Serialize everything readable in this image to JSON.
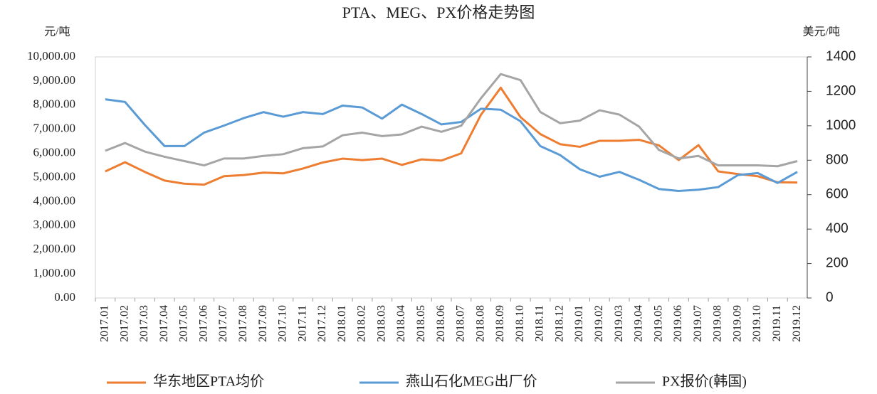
{
  "chart_data": {
    "type": "line",
    "title": "PTA、MEG、PX价格走势图",
    "y_label": "元/吨",
    "y2_label": "美元/吨",
    "categories": [
      "2017.01",
      "2017.02",
      "2017.03",
      "2017.04",
      "2017.05",
      "2017.06",
      "2017.07",
      "2017.08",
      "2017.09",
      "2017.10",
      "2017.11",
      "2017.12",
      "2018.01",
      "2018.02",
      "2018.03",
      "2018.04",
      "2018.05",
      "2018.06",
      "2018.07",
      "2018.08",
      "2018.09",
      "2018.10",
      "2018.11",
      "2018.12",
      "2019.01",
      "2019.02",
      "2019.03",
      "2019.04",
      "2019.05",
      "2019.06",
      "2019.07",
      "2019.08",
      "2019.09",
      "2019.10",
      "2019.11",
      "2019.12"
    ],
    "series": [
      {
        "name": "华东地区PTA均价",
        "color": "#ed7d31",
        "axis": "y",
        "values": [
          5250,
          5630,
          5230,
          4870,
          4740,
          4700,
          5050,
          5100,
          5200,
          5170,
          5370,
          5620,
          5780,
          5720,
          5780,
          5520,
          5750,
          5700,
          6000,
          7600,
          8720,
          7500,
          6800,
          6380,
          6270,
          6520,
          6520,
          6560,
          6330,
          5720,
          6340,
          5250,
          5140,
          5050,
          4800,
          4790
        ]
      },
      {
        "name": "燕山石化MEG出厂价",
        "color": "#5b9bd5",
        "axis": "y",
        "values": [
          8240,
          8130,
          7180,
          6300,
          6300,
          6860,
          7150,
          7460,
          7710,
          7520,
          7710,
          7630,
          7980,
          7900,
          7440,
          8020,
          7630,
          7200,
          7300,
          7850,
          7810,
          7330,
          6300,
          5930,
          5340,
          5030,
          5230,
          4900,
          4520,
          4440,
          4490,
          4600,
          5100,
          5180,
          4770,
          5230
        ]
      },
      {
        "name": "PX报价(韩国)",
        "color": "#a5a5a5",
        "axis": "y2",
        "values": [
          855,
          900,
          850,
          820,
          795,
          770,
          810,
          810,
          825,
          835,
          870,
          880,
          945,
          960,
          940,
          950,
          995,
          965,
          1000,
          1160,
          1300,
          1265,
          1080,
          1015,
          1030,
          1090,
          1065,
          995,
          860,
          810,
          825,
          770,
          770,
          770,
          765,
          795
        ]
      }
    ],
    "ylim": [
      0,
      10000
    ],
    "yticks": [
      {
        "value": 0,
        "label": "0.00"
      },
      {
        "value": 1000,
        "label": "1,000.00"
      },
      {
        "value": 2000,
        "label": "2,000.00"
      },
      {
        "value": 3000,
        "label": "3,000.00"
      },
      {
        "value": 4000,
        "label": "4,000.00"
      },
      {
        "value": 5000,
        "label": "5,000.00"
      },
      {
        "value": 6000,
        "label": "6,000.00"
      },
      {
        "value": 7000,
        "label": "7,000.00"
      },
      {
        "value": 8000,
        "label": "8,000.00"
      },
      {
        "value": 9000,
        "label": "9,000.00"
      },
      {
        "value": 10000,
        "label": "10,000.00"
      }
    ],
    "y2lim": [
      0,
      1400
    ],
    "y2ticks": [
      0,
      200,
      400,
      600,
      800,
      1000,
      1200,
      1400
    ],
    "grid": false,
    "legend": "bottom"
  }
}
